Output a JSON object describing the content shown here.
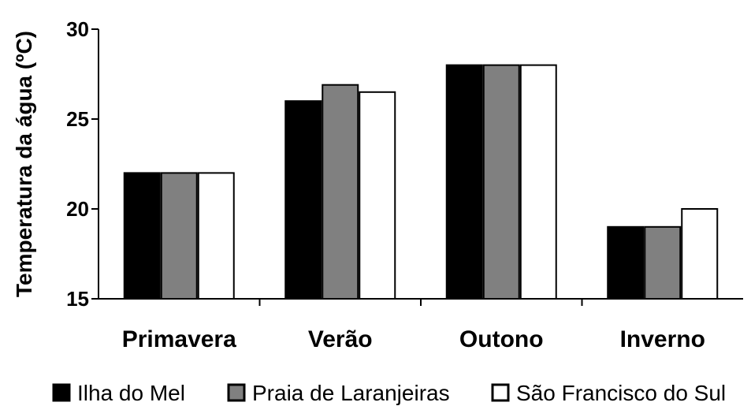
{
  "chart_data": {
    "type": "bar",
    "title": "",
    "xlabel": "",
    "ylabel": "Temperatura da água (ºC)",
    "ylim": [
      15,
      30
    ],
    "yticks": [
      "15",
      "20",
      "25",
      "30"
    ],
    "categories": [
      "Primavera",
      "Verão",
      "Outono",
      "Inverno"
    ],
    "series": [
      {
        "name": "Ilha do Mel",
        "values": [
          22,
          26,
          28,
          19
        ],
        "color": "#000000"
      },
      {
        "name": "Praia de Laranjeiras",
        "values": [
          22,
          26.9,
          28,
          19
        ],
        "color": "#808080"
      },
      {
        "name": "São Francisco do Sul",
        "values": [
          22,
          26.5,
          28,
          20
        ],
        "color": "#ffffff"
      }
    ],
    "grid": false,
    "legend_position": "bottom"
  }
}
